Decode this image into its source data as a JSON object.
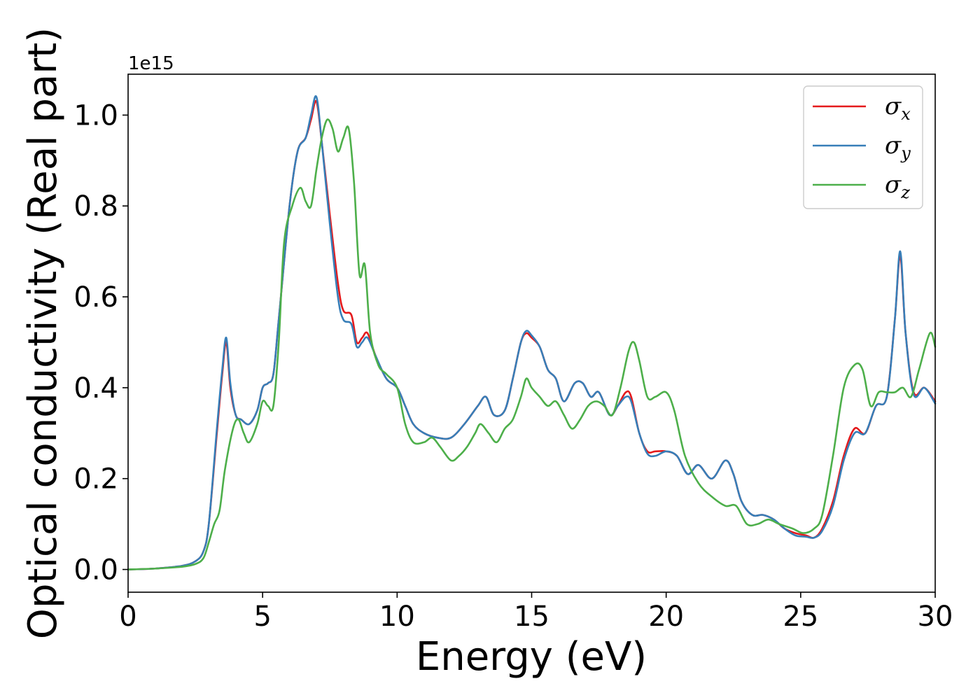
{
  "chart_data": {
    "type": "line",
    "title": "",
    "xlabel": "Energy (eV)",
    "ylabel": "Optical conductivity (Real part)",
    "y_offset_text": "1e15",
    "xlim": [
      0,
      30
    ],
    "ylim": [
      -0.05,
      1.09
    ],
    "x_ticks": [
      0,
      5,
      10,
      15,
      20,
      25,
      30
    ],
    "y_ticks": [
      0.0,
      0.2,
      0.4,
      0.6,
      0.8,
      1.0
    ],
    "x_tick_labels": [
      "0",
      "5",
      "10",
      "15",
      "20",
      "25",
      "30"
    ],
    "y_tick_labels": [
      "0.0",
      "0.2",
      "0.4",
      "0.6",
      "0.8",
      "1.0"
    ],
    "grid": false,
    "legend_position": "top-right",
    "series": [
      {
        "name": "σx",
        "legend_symbol": "σ",
        "legend_subscript": "x",
        "color": "#e41a1c",
        "x": [
          0,
          1,
          2,
          2.5,
          2.8,
          3.0,
          3.3,
          3.5,
          3.65,
          3.8,
          4.0,
          4.2,
          4.5,
          4.8,
          5.0,
          5.2,
          5.4,
          5.6,
          6.0,
          6.3,
          6.6,
          6.8,
          7.0,
          7.2,
          7.5,
          7.8,
          8.0,
          8.3,
          8.5,
          8.7,
          8.9,
          9.2,
          9.6,
          10.0,
          10.3,
          10.6,
          11.0,
          11.5,
          12.0,
          12.5,
          13.0,
          13.3,
          13.6,
          14.0,
          14.3,
          14.6,
          14.8,
          15.0,
          15.3,
          15.6,
          15.9,
          16.2,
          16.6,
          16.9,
          17.2,
          17.5,
          17.9,
          18.2,
          18.5,
          18.7,
          19.0,
          19.3,
          19.6,
          20.0,
          20.4,
          20.8,
          21.2,
          21.7,
          22.2,
          22.5,
          22.8,
          23.2,
          23.6,
          24.0,
          24.4,
          24.8,
          25.2,
          25.5,
          25.8,
          26.2,
          26.6,
          27.0,
          27.4,
          27.8,
          28.2,
          28.5,
          28.7,
          28.9,
          29.2,
          29.6,
          30.0
        ],
        "values": [
          0.0,
          0.002,
          0.008,
          0.018,
          0.04,
          0.1,
          0.3,
          0.43,
          0.5,
          0.4,
          0.34,
          0.33,
          0.32,
          0.35,
          0.4,
          0.41,
          0.43,
          0.55,
          0.8,
          0.92,
          0.95,
          0.99,
          1.03,
          0.94,
          0.78,
          0.63,
          0.57,
          0.56,
          0.5,
          0.51,
          0.52,
          0.47,
          0.42,
          0.4,
          0.36,
          0.32,
          0.3,
          0.29,
          0.29,
          0.32,
          0.36,
          0.38,
          0.34,
          0.35,
          0.42,
          0.5,
          0.52,
          0.51,
          0.49,
          0.44,
          0.42,
          0.37,
          0.41,
          0.41,
          0.38,
          0.39,
          0.34,
          0.36,
          0.39,
          0.38,
          0.3,
          0.26,
          0.26,
          0.26,
          0.25,
          0.21,
          0.23,
          0.2,
          0.24,
          0.21,
          0.15,
          0.12,
          0.12,
          0.11,
          0.09,
          0.08,
          0.075,
          0.07,
          0.09,
          0.15,
          0.25,
          0.31,
          0.3,
          0.36,
          0.38,
          0.55,
          0.69,
          0.52,
          0.39,
          0.4,
          0.37
        ]
      },
      {
        "name": "σy",
        "legend_symbol": "σ",
        "legend_subscript": "y",
        "color": "#377eb8",
        "x": [
          0,
          1,
          2,
          2.5,
          2.8,
          3.0,
          3.3,
          3.5,
          3.65,
          3.8,
          4.0,
          4.2,
          4.5,
          4.8,
          5.0,
          5.2,
          5.4,
          5.6,
          6.0,
          6.3,
          6.6,
          6.8,
          7.0,
          7.2,
          7.5,
          7.8,
          8.0,
          8.3,
          8.5,
          8.7,
          8.9,
          9.2,
          9.6,
          10.0,
          10.3,
          10.6,
          11.0,
          11.5,
          12.0,
          12.5,
          13.0,
          13.3,
          13.6,
          14.0,
          14.3,
          14.6,
          14.8,
          15.0,
          15.3,
          15.6,
          15.9,
          16.2,
          16.6,
          16.9,
          17.2,
          17.5,
          17.9,
          18.2,
          18.5,
          18.7,
          19.0,
          19.3,
          19.6,
          20.0,
          20.4,
          20.8,
          21.2,
          21.7,
          22.2,
          22.5,
          22.8,
          23.2,
          23.6,
          24.0,
          24.4,
          24.8,
          25.2,
          25.5,
          25.8,
          26.2,
          26.6,
          27.0,
          27.4,
          27.8,
          28.2,
          28.5,
          28.7,
          28.9,
          29.2,
          29.6,
          30.0
        ],
        "values": [
          0.0,
          0.002,
          0.008,
          0.018,
          0.04,
          0.1,
          0.31,
          0.44,
          0.51,
          0.41,
          0.34,
          0.33,
          0.32,
          0.35,
          0.4,
          0.41,
          0.43,
          0.55,
          0.8,
          0.92,
          0.95,
          1.0,
          1.04,
          0.94,
          0.76,
          0.6,
          0.55,
          0.54,
          0.49,
          0.5,
          0.51,
          0.47,
          0.42,
          0.4,
          0.36,
          0.32,
          0.3,
          0.29,
          0.29,
          0.32,
          0.36,
          0.38,
          0.34,
          0.35,
          0.42,
          0.5,
          0.525,
          0.515,
          0.49,
          0.44,
          0.42,
          0.37,
          0.41,
          0.41,
          0.38,
          0.39,
          0.34,
          0.36,
          0.38,
          0.37,
          0.3,
          0.255,
          0.25,
          0.26,
          0.25,
          0.21,
          0.23,
          0.2,
          0.24,
          0.21,
          0.15,
          0.12,
          0.12,
          0.11,
          0.09,
          0.075,
          0.072,
          0.07,
          0.085,
          0.14,
          0.24,
          0.3,
          0.3,
          0.36,
          0.38,
          0.55,
          0.7,
          0.52,
          0.385,
          0.4,
          0.365
        ]
      },
      {
        "name": "σz",
        "legend_symbol": "σ",
        "legend_subscript": "z",
        "color": "#4daf4a",
        "x": [
          0,
          1,
          2,
          2.5,
          2.8,
          3.0,
          3.2,
          3.4,
          3.6,
          3.9,
          4.1,
          4.3,
          4.5,
          4.8,
          5.0,
          5.2,
          5.4,
          5.6,
          5.8,
          6.1,
          6.4,
          6.6,
          6.8,
          7.0,
          7.2,
          7.4,
          7.6,
          7.8,
          8.0,
          8.2,
          8.4,
          8.6,
          8.8,
          9.0,
          9.3,
          9.6,
          10.0,
          10.3,
          10.6,
          11.0,
          11.3,
          11.6,
          12.0,
          12.3,
          12.6,
          12.9,
          13.1,
          13.4,
          13.7,
          14.0,
          14.3,
          14.6,
          14.8,
          15.0,
          15.3,
          15.6,
          15.9,
          16.2,
          16.5,
          16.8,
          17.1,
          17.4,
          17.7,
          18.0,
          18.3,
          18.6,
          18.8,
          19.0,
          19.3,
          19.6,
          20.0,
          20.3,
          20.7,
          21.2,
          21.7,
          22.2,
          22.6,
          23.0,
          23.4,
          23.8,
          24.2,
          24.7,
          25.1,
          25.5,
          25.8,
          26.2,
          26.6,
          27.0,
          27.3,
          27.6,
          27.9,
          28.2,
          28.5,
          28.8,
          29.1,
          29.4,
          29.8,
          30.0
        ],
        "values": [
          0.0,
          0.002,
          0.006,
          0.012,
          0.025,
          0.06,
          0.1,
          0.13,
          0.22,
          0.31,
          0.33,
          0.3,
          0.28,
          0.32,
          0.37,
          0.36,
          0.36,
          0.5,
          0.72,
          0.8,
          0.84,
          0.81,
          0.8,
          0.88,
          0.95,
          0.99,
          0.97,
          0.92,
          0.95,
          0.97,
          0.85,
          0.65,
          0.67,
          0.52,
          0.45,
          0.43,
          0.4,
          0.32,
          0.28,
          0.28,
          0.29,
          0.27,
          0.24,
          0.25,
          0.27,
          0.3,
          0.32,
          0.3,
          0.28,
          0.31,
          0.33,
          0.38,
          0.42,
          0.4,
          0.38,
          0.36,
          0.37,
          0.34,
          0.31,
          0.33,
          0.36,
          0.37,
          0.36,
          0.34,
          0.4,
          0.48,
          0.5,
          0.46,
          0.38,
          0.38,
          0.39,
          0.35,
          0.25,
          0.19,
          0.16,
          0.14,
          0.14,
          0.1,
          0.1,
          0.11,
          0.1,
          0.09,
          0.08,
          0.09,
          0.12,
          0.25,
          0.4,
          0.45,
          0.44,
          0.36,
          0.39,
          0.39,
          0.39,
          0.4,
          0.38,
          0.44,
          0.52,
          0.49
        ]
      }
    ]
  }
}
